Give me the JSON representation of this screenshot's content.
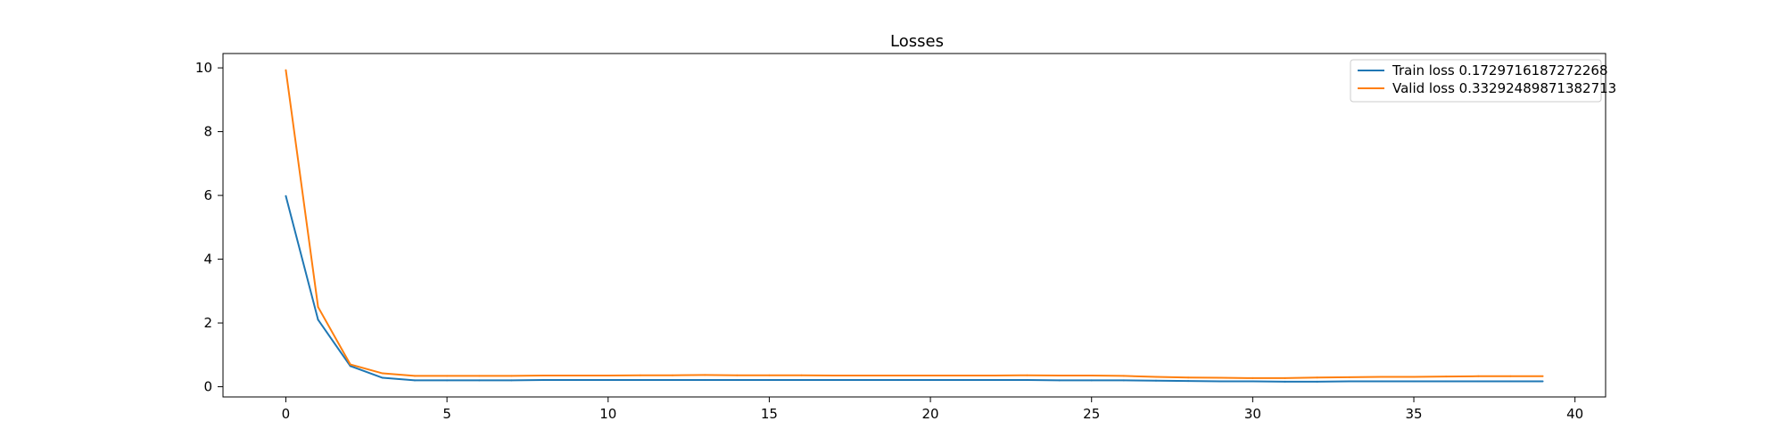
{
  "chart_data": {
    "type": "line",
    "title": "Losses",
    "xlabel": "",
    "ylabel": "",
    "xlim": [
      -1.95,
      40.95
    ],
    "ylim": [
      -0.32,
      10.45
    ],
    "xticks": [
      0,
      5,
      10,
      15,
      20,
      25,
      30,
      35,
      40
    ],
    "yticks": [
      0,
      2,
      4,
      6,
      8,
      10
    ],
    "grid": false,
    "legend_position": "top-right",
    "x": [
      0,
      1,
      2,
      3,
      4,
      5,
      6,
      7,
      8,
      9,
      10,
      11,
      12,
      13,
      14,
      15,
      16,
      17,
      18,
      19,
      20,
      21,
      22,
      23,
      24,
      25,
      26,
      27,
      28,
      29,
      30,
      31,
      32,
      33,
      34,
      35,
      36,
      37,
      38,
      39
    ],
    "series": [
      {
        "name": "Train loss 0.1729716187272268",
        "color": "#1f77b4",
        "values": [
          5.98,
          2.1,
          0.65,
          0.28,
          0.2,
          0.2,
          0.2,
          0.2,
          0.21,
          0.21,
          0.21,
          0.21,
          0.21,
          0.21,
          0.21,
          0.21,
          0.21,
          0.21,
          0.21,
          0.21,
          0.21,
          0.21,
          0.21,
          0.21,
          0.2,
          0.2,
          0.2,
          0.19,
          0.18,
          0.17,
          0.17,
          0.16,
          0.16,
          0.17,
          0.17,
          0.17,
          0.17,
          0.17,
          0.17,
          0.17
        ]
      },
      {
        "name": "Valid loss 0.33292489871382713",
        "color": "#ff7f0e",
        "values": [
          9.93,
          2.5,
          0.7,
          0.42,
          0.34,
          0.34,
          0.34,
          0.34,
          0.35,
          0.35,
          0.35,
          0.36,
          0.36,
          0.37,
          0.36,
          0.36,
          0.36,
          0.35,
          0.35,
          0.35,
          0.35,
          0.35,
          0.35,
          0.36,
          0.35,
          0.35,
          0.34,
          0.31,
          0.29,
          0.28,
          0.27,
          0.27,
          0.29,
          0.3,
          0.31,
          0.31,
          0.32,
          0.33,
          0.33,
          0.33
        ]
      }
    ]
  }
}
